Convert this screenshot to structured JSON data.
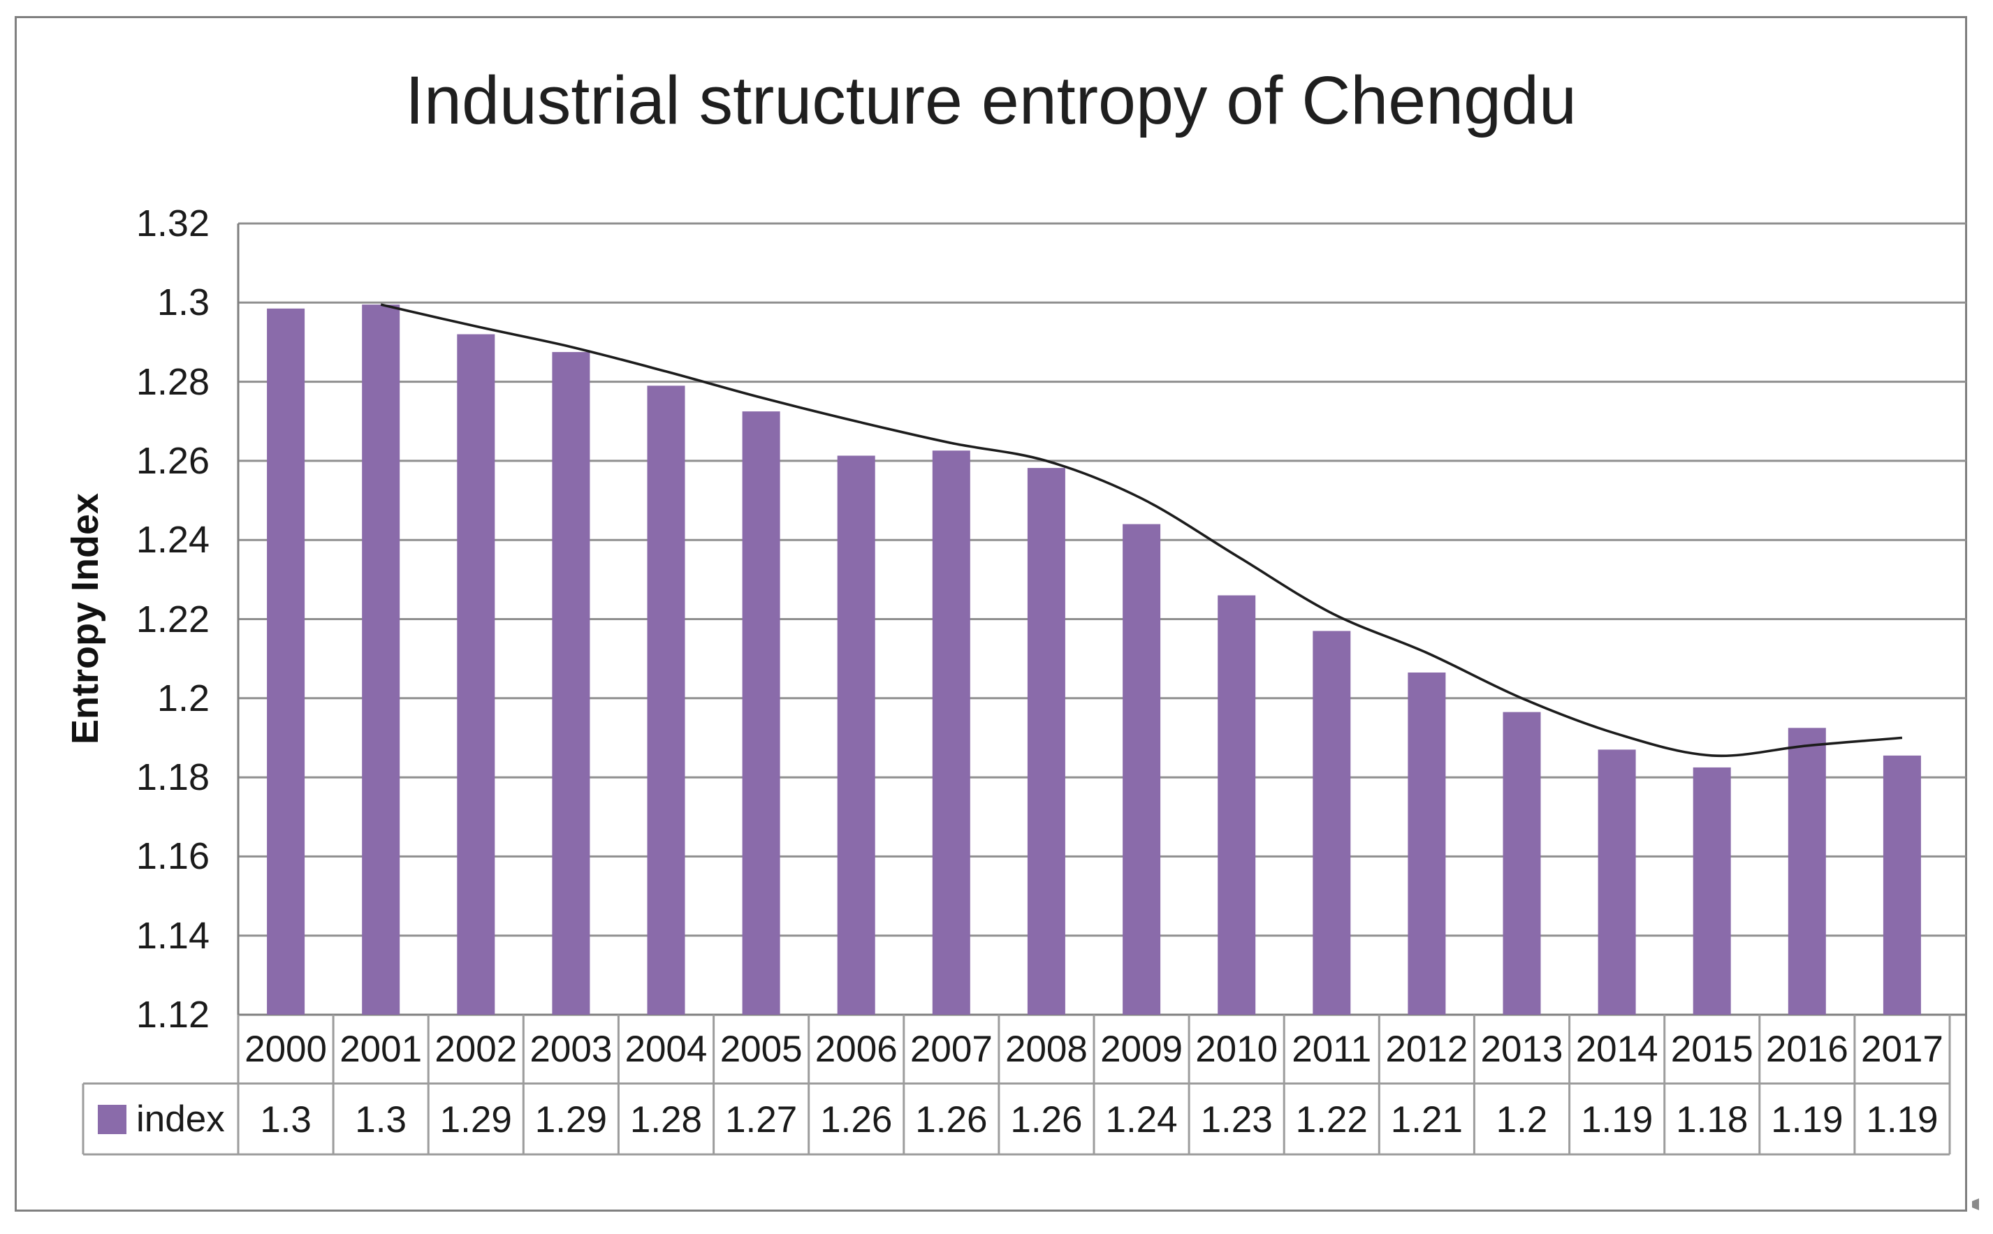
{
  "chart_data": {
    "type": "bar",
    "title": "Industrial structure entropy of Chengdu",
    "xlabel": "",
    "ylabel": "Entropy Index",
    "categories": [
      "2000",
      "2001",
      "2002",
      "2003",
      "2004",
      "2005",
      "2006",
      "2007",
      "2008",
      "2009",
      "2010",
      "2011",
      "2012",
      "2013",
      "2014",
      "2015",
      "2016",
      "2017"
    ],
    "series": [
      {
        "name": "index",
        "type": "bar",
        "color": "#8A6BAA",
        "values": [
          1.2985,
          1.2995,
          1.292,
          1.2875,
          1.279,
          1.2725,
          1.2613,
          1.2626,
          1.2582,
          1.244,
          1.226,
          1.217,
          1.2065,
          1.1965,
          1.187,
          1.1825,
          1.1925,
          1.1855
        ]
      },
      {
        "name": "trend-line",
        "type": "line",
        "color": "#1c1c1c",
        "start_category": "2001",
        "x": [
          "2001",
          "2002",
          "2003",
          "2004",
          "2005",
          "2006",
          "2007",
          "2008",
          "2009",
          "2010",
          "2011",
          "2012",
          "2013",
          "2014",
          "2015",
          "2016",
          "2017"
        ],
        "values": [
          1.2995,
          1.294,
          1.2888,
          1.2826,
          1.276,
          1.27,
          1.2645,
          1.26,
          1.2505,
          1.236,
          1.2215,
          1.2115,
          1.2,
          1.191,
          1.1855,
          1.188,
          1.19
        ]
      }
    ],
    "ylim": [
      1.12,
      1.32
    ],
    "ytick_step": 0.02,
    "ytick_labels": [
      "1.32",
      "1.3",
      "1.28",
      "1.26",
      "1.24",
      "1.22",
      "1.2",
      "1.18",
      "1.16",
      "1.14",
      "1.12"
    ],
    "grid": true,
    "legend_position": "data-table-left",
    "data_table": {
      "row_label": "index",
      "display_values": [
        "1.3",
        "1.3",
        "1.29",
        "1.29",
        "1.28",
        "1.27",
        "1.26",
        "1.26",
        "1.26",
        "1.24",
        "1.23",
        "1.22",
        "1.21",
        "1.2",
        "1.19",
        "1.18",
        "1.19",
        "1.19"
      ]
    }
  },
  "colors": {
    "bar": "#8A6BAA",
    "line": "#1c1c1c",
    "gridline": "#8f8f8f",
    "axis": "#7f7f7f",
    "table_border": "#9c9c9c",
    "frame": "#808080",
    "anchor_mark": "#8a8a8a",
    "text": "#1a1a1a"
  }
}
